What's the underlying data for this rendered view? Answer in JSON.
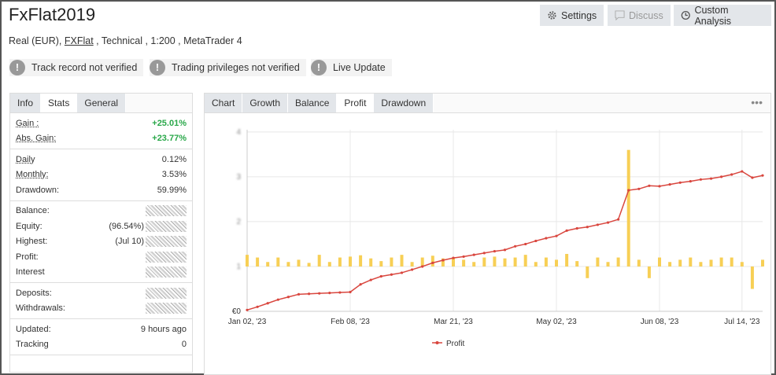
{
  "header": {
    "title": "FxFlat2019",
    "buttons": [
      "Settings",
      "Discuss",
      "Custom Analysis"
    ]
  },
  "account": {
    "type": "Real (EUR)",
    "broker": "FXFlat",
    "system": "Technical",
    "leverage": "1:200",
    "platform": "MetaTrader 4"
  },
  "badges": [
    "Track record not verified",
    "Trading privileges not verified",
    "Live Update"
  ],
  "stats": {
    "tabs": [
      "Info",
      "Stats",
      "General"
    ],
    "active_tab": "Stats",
    "groups": [
      [
        {
          "label": "Gain :",
          "value": "+25.01%",
          "positive": true
        },
        {
          "label": "Abs. Gain:",
          "value": "+23.77%",
          "positive": true
        }
      ],
      [
        {
          "label": "Daily",
          "value": "0.12%"
        },
        {
          "label": "Monthly:",
          "value": "3.53%"
        },
        {
          "label": "Drawdown:",
          "value": "59.99%"
        }
      ],
      [
        {
          "label": "Balance:"
        },
        {
          "label": "Equity:",
          "value": "(96.54%)"
        },
        {
          "label": "Highest:",
          "value": "(Jul 10)"
        },
        {
          "label": "Profit:"
        },
        {
          "label": "Interest"
        }
      ],
      [
        {
          "label": "Deposits:"
        },
        {
          "label": "Withdrawals:"
        }
      ],
      [
        {
          "label": "Updated:",
          "value": "9 hours ago"
        },
        {
          "label": "Tracking",
          "value": "0"
        }
      ]
    ]
  },
  "chart_tabs": {
    "tabs": [
      "Chart",
      "Growth",
      "Balance",
      "Profit",
      "Drawdown"
    ],
    "active_tab": "Profit"
  },
  "chart_data": {
    "type": "line",
    "grid": true,
    "categories": [
      "Jan 02, '23",
      null,
      null,
      null,
      null,
      null,
      null,
      null,
      null,
      null,
      "Feb 08, '23",
      null,
      null,
      null,
      null,
      null,
      null,
      null,
      null,
      null,
      "Mar 21, '23",
      null,
      null,
      null,
      null,
      null,
      null,
      null,
      null,
      null,
      "May 02, '23",
      null,
      null,
      null,
      null,
      null,
      null,
      null,
      null,
      null,
      "Jun 08, '23",
      null,
      null,
      null,
      null,
      null,
      null,
      null,
      "Jul 14, '23",
      null,
      null
    ],
    "ylim": [
      0,
      4.05
    ],
    "yticks": [
      {
        "value": 0,
        "label": "€0"
      },
      1,
      2,
      3,
      4
    ],
    "y2lim": [
      -1,
      3.05
    ],
    "series": [
      {
        "name": "Profit",
        "color": "#d9463e",
        "values": [
          0.03,
          0.1,
          0.18,
          0.26,
          0.32,
          0.38,
          0.39,
          0.4,
          0.41,
          0.42,
          0.43,
          0.6,
          0.7,
          0.78,
          0.82,
          0.86,
          0.93,
          1.0,
          1.08,
          1.14,
          1.19,
          1.22,
          1.26,
          1.3,
          1.34,
          1.37,
          1.45,
          1.5,
          1.57,
          1.63,
          1.68,
          1.8,
          1.85,
          1.88,
          1.93,
          1.98,
          2.05,
          2.7,
          2.73,
          2.8,
          2.79,
          2.83,
          2.87,
          2.9,
          2.94,
          2.96,
          3.0,
          3.05,
          3.12,
          2.98,
          3.03
        ]
      },
      {
        "type": "bar",
        "axis": "y2",
        "color": "#f7cf55",
        "values": [
          0.26,
          0.2,
          0.1,
          0.2,
          0.1,
          0.15,
          0.08,
          0.26,
          0.1,
          0.2,
          0.22,
          0.25,
          0.18,
          0.12,
          0.2,
          0.26,
          0.1,
          0.2,
          0.24,
          0.18,
          0.2,
          0.15,
          0.1,
          0.2,
          0.22,
          0.18,
          0.2,
          0.26,
          0.1,
          0.2,
          0.15,
          0.28,
          0.12,
          -0.26,
          0.2,
          0.1,
          0.2,
          2.6,
          0.15,
          -0.26,
          0.2,
          0.1,
          0.15,
          0.2,
          0.1,
          0.15,
          0.2,
          0.2,
          0.1,
          -0.5,
          0.15
        ]
      }
    ]
  }
}
